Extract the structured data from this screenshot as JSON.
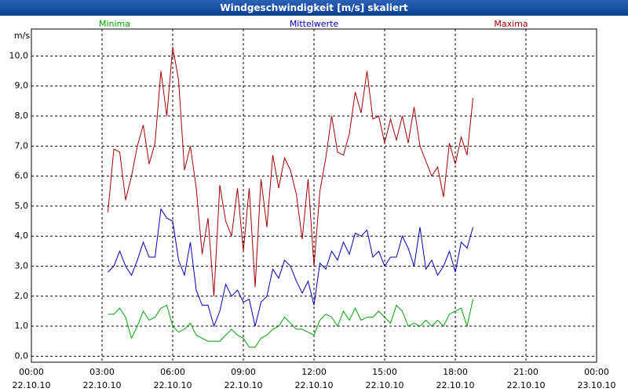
{
  "chart_data": {
    "type": "line",
    "title": "Windgeschwindigkeit [m/s] skaliert",
    "y_label": "m/s",
    "x": [
      3.25,
      3.5,
      3.75,
      4,
      4.25,
      4.5,
      4.75,
      5,
      5.25,
      5.5,
      5.75,
      6,
      6.25,
      6.5,
      6.75,
      7,
      7.25,
      7.5,
      7.75,
      8,
      8.25,
      8.5,
      8.75,
      9,
      9.25,
      9.5,
      9.75,
      10,
      10.25,
      10.5,
      10.75,
      11,
      11.25,
      11.5,
      11.75,
      12,
      12.25,
      12.5,
      12.75,
      13,
      13.25,
      13.5,
      13.75,
      14,
      14.25,
      14.5,
      14.75,
      15,
      15.25,
      15.5,
      15.75,
      16,
      16.25,
      16.5,
      16.75,
      17,
      17.25,
      17.5,
      17.75,
      18,
      18.25,
      18.5,
      18.75
    ],
    "series": [
      {
        "name": "Minima",
        "color": "#00a000",
        "values": [
          1.4,
          1.4,
          1.6,
          1.3,
          0.6,
          1.0,
          1.5,
          1.2,
          1.3,
          1.6,
          1.7,
          1.0,
          0.8,
          0.9,
          1.1,
          0.7,
          0.6,
          0.5,
          0.5,
          0.5,
          0.7,
          0.9,
          0.7,
          0.6,
          0.3,
          0.3,
          0.6,
          0.7,
          0.9,
          1.0,
          1.3,
          1.1,
          0.9,
          0.9,
          0.8,
          0.7,
          1.2,
          1.4,
          1.3,
          1.0,
          1.5,
          1.2,
          1.6,
          1.2,
          1.3,
          1.3,
          1.5,
          1.3,
          1.1,
          1.7,
          1.5,
          1.0,
          1.1,
          1.0,
          1.2,
          1.0,
          1.2,
          1.0,
          1.4,
          1.5,
          1.6,
          1.0,
          1.9
        ]
      },
      {
        "name": "Mittelwerte",
        "color": "#0000b0",
        "values": [
          2.8,
          3.0,
          3.5,
          3.0,
          2.7,
          3.2,
          3.8,
          3.3,
          3.3,
          4.9,
          4.6,
          4.5,
          3.2,
          2.7,
          3.8,
          2.2,
          1.7,
          1.7,
          1.0,
          1.5,
          2.4,
          2.0,
          2.2,
          1.8,
          1.9,
          1.0,
          1.8,
          2.0,
          2.9,
          2.6,
          3.2,
          3.0,
          2.5,
          2.1,
          2.5,
          1.7,
          3.1,
          2.9,
          3.5,
          3.2,
          3.8,
          3.4,
          4.1,
          4.0,
          4.2,
          3.3,
          3.5,
          3.0,
          3.3,
          3.3,
          4.0,
          3.6,
          3.0,
          4.3,
          2.9,
          3.2,
          2.7,
          3.0,
          3.5,
          2.8,
          3.8,
          3.6,
          4.3
        ]
      },
      {
        "name": "Maxima",
        "color": "#a00000",
        "values": [
          4.8,
          6.9,
          6.8,
          5.2,
          6.0,
          7.0,
          7.7,
          6.4,
          7.1,
          9.5,
          8.0,
          10.3,
          9.2,
          6.2,
          7.0,
          5.6,
          3.4,
          4.6,
          2.0,
          5.7,
          4.5,
          4.0,
          5.6,
          3.5,
          5.6,
          2.3,
          5.9,
          4.3,
          6.7,
          5.6,
          6.6,
          6.2,
          5.4,
          3.9,
          5.9,
          3.0,
          5.5,
          6.6,
          8.0,
          6.8,
          6.7,
          7.4,
          8.8,
          8.1,
          9.5,
          7.9,
          8.0,
          7.1,
          7.9,
          7.2,
          8.0,
          7.1,
          8.3,
          7.0,
          6.5,
          6.0,
          6.3,
          5.3,
          7.1,
          6.4,
          7.3,
          6.7,
          8.6
        ]
      }
    ],
    "xlim": [
      0,
      24
    ],
    "xticks": [
      {
        "value": 0,
        "label": "00:00\n22.10.10"
      },
      {
        "value": 3,
        "label": "03:00\n22.10.10"
      },
      {
        "value": 6,
        "label": "06:00\n22.10.10"
      },
      {
        "value": 9,
        "label": "09:00\n22.10.10"
      },
      {
        "value": 12,
        "label": "12:00\n22.10.10"
      },
      {
        "value": 15,
        "label": "15:00\n22.10.10"
      },
      {
        "value": 18,
        "label": "18:00\n22.10.10"
      },
      {
        "value": 21,
        "label": "21:00\n22.10.10"
      },
      {
        "value": 24,
        "label": "00:00\n23.10.10"
      }
    ],
    "ylim": [
      -0.2,
      10.9
    ],
    "yticks": [
      {
        "value": 0,
        "label": "0,0"
      },
      {
        "value": 1,
        "label": "1,0"
      },
      {
        "value": 2,
        "label": "2,0"
      },
      {
        "value": 3,
        "label": "3,0"
      },
      {
        "value": 4,
        "label": "4,0"
      },
      {
        "value": 5,
        "label": "5,0"
      },
      {
        "value": 6,
        "label": "6,0"
      },
      {
        "value": 7,
        "label": "7,0"
      },
      {
        "value": 8,
        "label": "8,0"
      },
      {
        "value": 9,
        "label": "9,0"
      },
      {
        "value": 10,
        "label": "10,0"
      }
    ],
    "grid": true
  }
}
